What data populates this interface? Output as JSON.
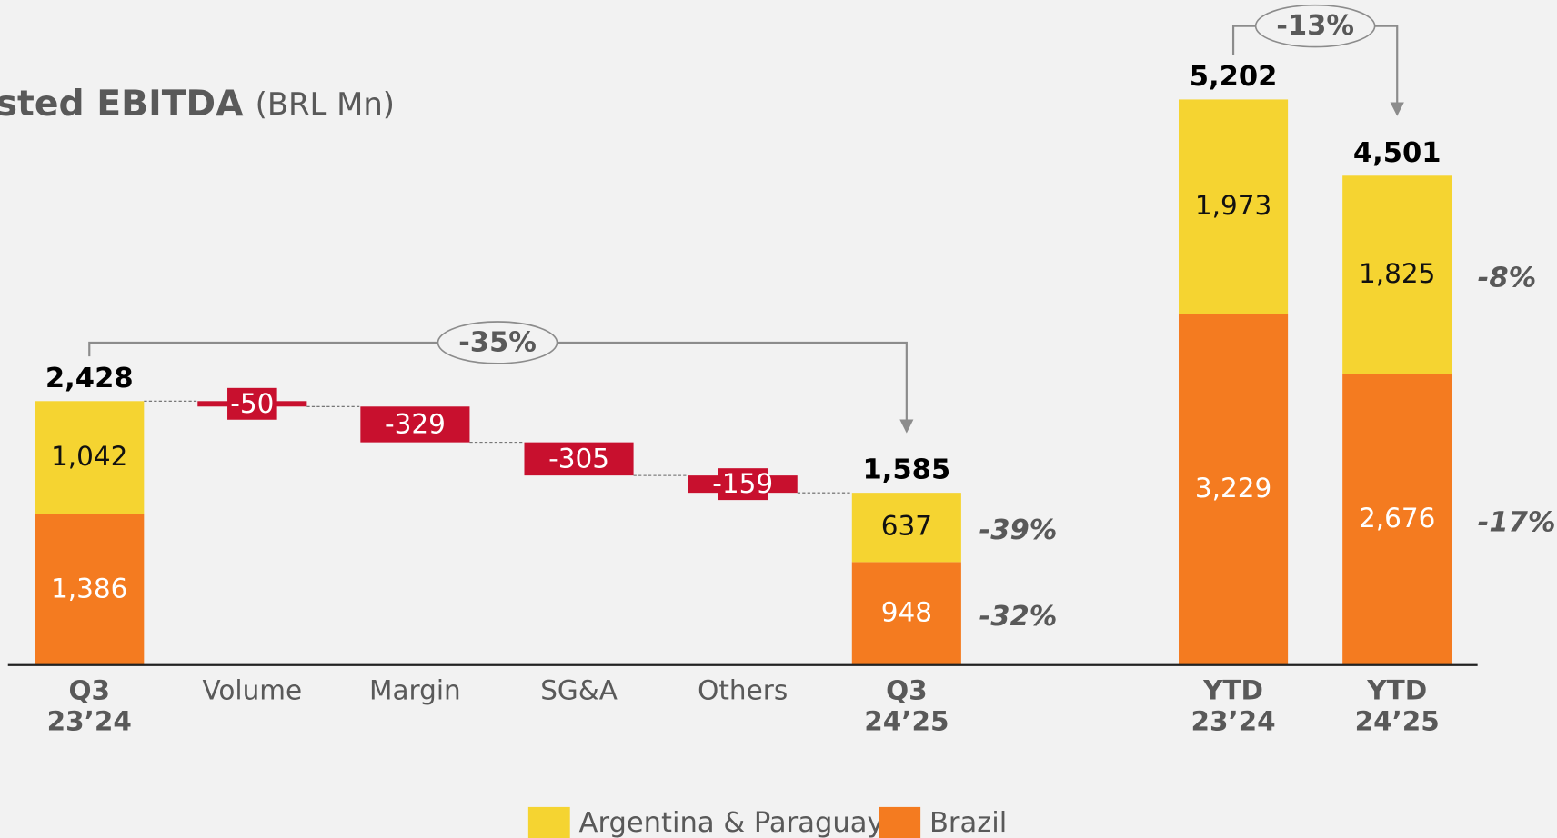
{
  "chart_data": {
    "type": "waterfall",
    "title": "sted EBITDA",
    "subtitle": "(BRL Mn)",
    "categories": [
      [
        "Q3",
        "23’24"
      ],
      [
        "Volume"
      ],
      [
        "Margin"
      ],
      [
        "SG&A"
      ],
      [
        "Others"
      ],
      [
        "Q3",
        "24’25"
      ],
      [
        "YTD",
        "23’24"
      ],
      [
        "YTD",
        "24’25"
      ]
    ],
    "series": [
      {
        "name": "Brazil",
        "color": "#f47b20",
        "values": [
          1386,
          null,
          null,
          null,
          null,
          948,
          3229,
          2676
        ],
        "value_labels": [
          "1,386",
          null,
          null,
          null,
          null,
          "948",
          "3,229",
          "2,676"
        ],
        "change": {
          "values": [
            null,
            null,
            null,
            null,
            null,
            -32,
            null,
            -17
          ],
          "value_labels": [
            null,
            null,
            null,
            null,
            null,
            "-32%",
            null,
            "-17%"
          ]
        }
      },
      {
        "name": "Argentina & Paraguay",
        "color": "#f5d431",
        "values": [
          1042,
          null,
          null,
          null,
          null,
          637,
          1973,
          1825
        ],
        "value_labels": [
          "1,042",
          null,
          null,
          null,
          null,
          "637",
          "1,973",
          "1,825"
        ],
        "change": {
          "values": [
            null,
            null,
            null,
            null,
            null,
            -39,
            null,
            -8
          ],
          "value_labels": [
            null,
            null,
            null,
            null,
            null,
            "-39%",
            null,
            "-8%"
          ]
        }
      }
    ],
    "totals": {
      "values": [
        2428,
        null,
        null,
        null,
        null,
        1585,
        5202,
        4501
      ],
      "value_labels": [
        "2,428",
        null,
        null,
        null,
        null,
        "1,585",
        "5,202",
        "4,501"
      ]
    },
    "deltas": {
      "color": "#c8102e",
      "values": [
        null,
        -50,
        -329,
        -305,
        -159,
        null,
        null,
        null
      ]
    },
    "annotations": [
      {
        "from": 0,
        "to": 5,
        "value": -35,
        "label": "-35%"
      },
      {
        "from": 6,
        "to": 7,
        "value": -13,
        "label": "-13%"
      }
    ],
    "legend": [
      "Argentina & Paraguay",
      "Brazil"
    ]
  }
}
